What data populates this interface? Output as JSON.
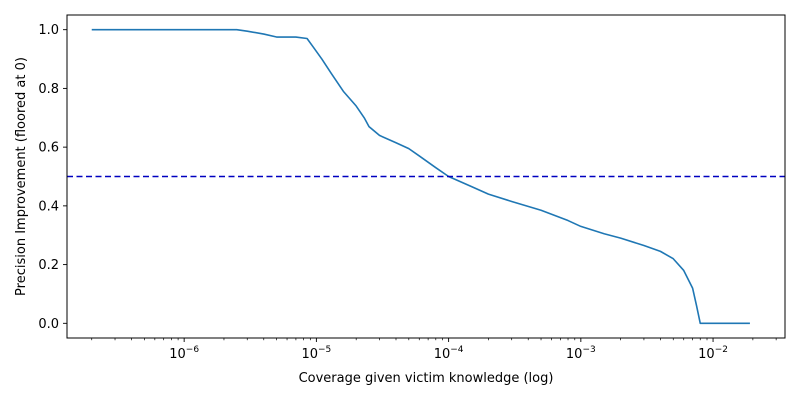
{
  "chart_data": {
    "type": "line",
    "xscale": "log",
    "xlabel": "Coverage given victim knowledge (log)",
    "ylabel": "Precision Improvement (floored at 0)",
    "xlim": [
      1.3e-07,
      0.035
    ],
    "ylim": [
      -0.05,
      1.05
    ],
    "xticks": [
      {
        "value": 1e-06,
        "base": "10",
        "exp": "−6"
      },
      {
        "value": 1e-05,
        "base": "10",
        "exp": "−5"
      },
      {
        "value": 0.0001,
        "base": "10",
        "exp": "−4"
      },
      {
        "value": 0.001,
        "base": "10",
        "exp": "−3"
      },
      {
        "value": 0.01,
        "base": "10",
        "exp": "−2"
      }
    ],
    "yticks": [
      "0.0",
      "0.2",
      "0.4",
      "0.6",
      "0.8",
      "1.0"
    ],
    "ytick_values": [
      0.0,
      0.2,
      0.4,
      0.6,
      0.8,
      1.0
    ],
    "grid": false,
    "reference_line": {
      "y": 0.5,
      "style": "dashed",
      "color": "#0000c0"
    },
    "series": [
      {
        "color": "#1f77b4",
        "x": [
          2e-07,
          2.5e-06,
          3e-06,
          4e-06,
          5e-06,
          7e-06,
          8.5e-06,
          9.5e-06,
          1.1e-05,
          1.3e-05,
          1.6e-05,
          2e-05,
          2.3e-05,
          2.5e-05,
          3e-05,
          4e-05,
          5e-05,
          6e-05,
          8e-05,
          0.0001,
          0.00015,
          0.0002,
          0.0003,
          0.0005,
          0.0008,
          0.001,
          0.0015,
          0.002,
          0.003,
          0.004,
          0.005,
          0.006,
          0.007,
          0.0075,
          0.008,
          0.01,
          0.019
        ],
        "y": [
          1.0,
          1.0,
          0.995,
          0.985,
          0.975,
          0.975,
          0.97,
          0.94,
          0.9,
          0.85,
          0.79,
          0.74,
          0.7,
          0.67,
          0.64,
          0.615,
          0.595,
          0.57,
          0.53,
          0.5,
          0.465,
          0.44,
          0.415,
          0.385,
          0.35,
          0.33,
          0.305,
          0.29,
          0.265,
          0.245,
          0.22,
          0.18,
          0.12,
          0.06,
          0.0,
          0.0,
          0.0
        ]
      }
    ]
  }
}
